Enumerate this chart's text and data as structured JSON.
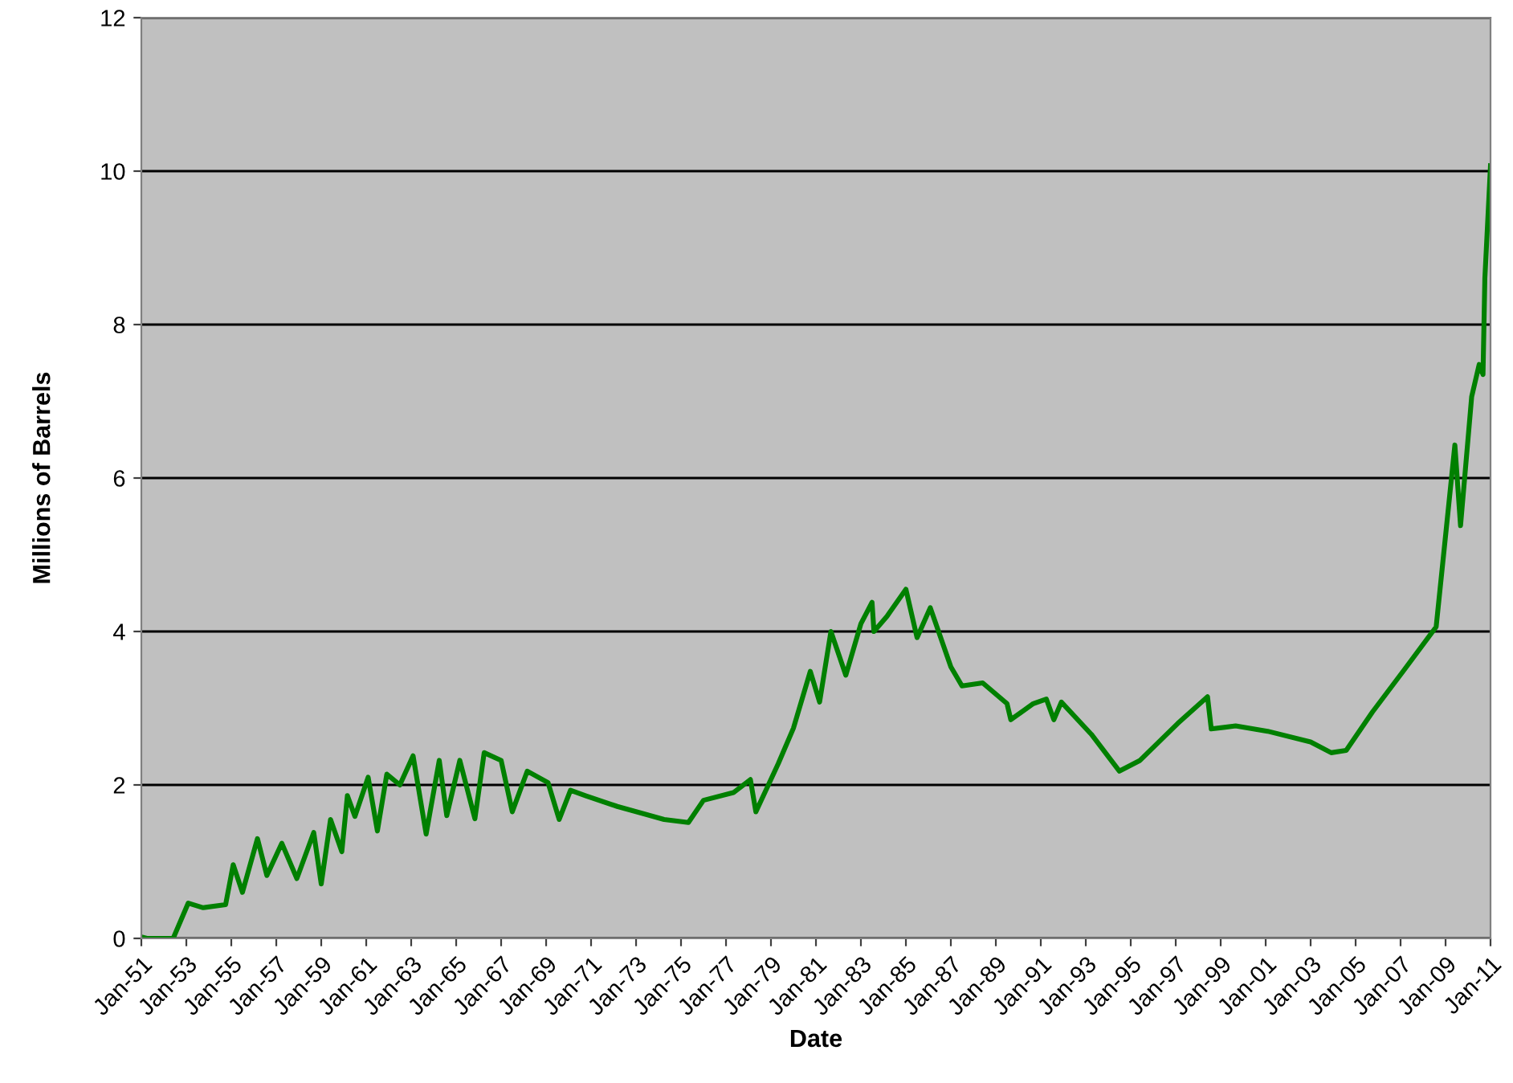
{
  "chart_data": {
    "type": "line",
    "xlabel": "Date",
    "ylabel": "Millions of Barrels",
    "x": [
      "1951-01",
      "1951-04",
      "1952-06",
      "1953-02",
      "1953-10",
      "1954-10",
      "1955-02",
      "1955-07",
      "1956-03",
      "1956-08",
      "1957-04",
      "1957-12",
      "1958-09",
      "1959-01",
      "1959-06",
      "1959-12",
      "1960-03",
      "1960-07",
      "1961-02",
      "1961-07",
      "1961-12",
      "1962-07",
      "1963-02",
      "1963-09",
      "1964-04",
      "1964-08",
      "1965-03",
      "1965-11",
      "1966-04",
      "1967-01",
      "1967-07",
      "1968-03",
      "1969-02",
      "1969-08",
      "1970-02",
      "1970-10",
      "1972-03",
      "1974-04",
      "1975-05",
      "1976-01",
      "1977-05",
      "1978-02",
      "1978-05",
      "1979-05",
      "1980-01",
      "1980-10",
      "1981-03",
      "1981-09",
      "1982-05",
      "1983-01",
      "1983-07",
      "1983-08",
      "1984-03",
      "1985-01",
      "1985-07",
      "1986-02",
      "1987-01",
      "1987-07",
      "1988-06",
      "1989-07",
      "1989-09",
      "1990-09",
      "1991-04",
      "1991-08",
      "1991-12",
      "1993-04",
      "1994-07",
      "1995-06",
      "1997-02",
      "1998-06",
      "1998-08",
      "1999-09",
      "2001-02",
      "2003-01",
      "2003-12",
      "2004-08",
      "2005-10",
      "2007-03",
      "2008-08",
      "2009-01",
      "2009-06",
      "2009-09",
      "2010-03",
      "2010-07",
      "2010-09",
      "2010-10",
      "2011-01"
    ],
    "series": [
      {
        "color": "#008000",
        "values": [
          0.02,
          0.0,
          0.0,
          0.46,
          0.4,
          0.44,
          0.96,
          0.6,
          1.3,
          0.82,
          1.24,
          0.78,
          1.38,
          0.71,
          1.55,
          1.13,
          1.86,
          1.59,
          2.1,
          1.4,
          2.14,
          2.0,
          2.38,
          1.36,
          2.32,
          1.6,
          2.32,
          1.56,
          2.42,
          2.32,
          1.65,
          2.18,
          2.03,
          1.55,
          1.93,
          1.86,
          1.72,
          1.55,
          1.51,
          1.8,
          1.9,
          2.07,
          1.65,
          2.28,
          2.74,
          3.48,
          3.08,
          4.0,
          3.43,
          4.1,
          4.38,
          4.0,
          4.2,
          4.55,
          3.92,
          4.31,
          3.54,
          3.29,
          3.33,
          3.06,
          2.85,
          3.06,
          3.12,
          2.85,
          3.08,
          2.66,
          2.18,
          2.32,
          2.8,
          3.15,
          2.73,
          2.77,
          2.7,
          2.56,
          2.42,
          2.45,
          2.95,
          3.5,
          4.06,
          5.25,
          6.43,
          5.38,
          7.06,
          7.48,
          7.35,
          8.6,
          10.07
        ]
      }
    ],
    "xlim": [
      "1951-01",
      "2011-01"
    ],
    "xticks": [
      {
        "value": "1951-01",
        "label": "Jan-51"
      },
      {
        "value": "1953-01",
        "label": "Jan-53"
      },
      {
        "value": "1955-01",
        "label": "Jan-55"
      },
      {
        "value": "1957-01",
        "label": "Jan-57"
      },
      {
        "value": "1959-01",
        "label": "Jan-59"
      },
      {
        "value": "1961-01",
        "label": "Jan-61"
      },
      {
        "value": "1963-01",
        "label": "Jan-63"
      },
      {
        "value": "1965-01",
        "label": "Jan-65"
      },
      {
        "value": "1967-01",
        "label": "Jan-67"
      },
      {
        "value": "1969-01",
        "label": "Jan-69"
      },
      {
        "value": "1971-01",
        "label": "Jan-71"
      },
      {
        "value": "1973-01",
        "label": "Jan-73"
      },
      {
        "value": "1975-01",
        "label": "Jan-75"
      },
      {
        "value": "1977-01",
        "label": "Jan-77"
      },
      {
        "value": "1979-01",
        "label": "Jan-79"
      },
      {
        "value": "1981-01",
        "label": "Jan-81"
      },
      {
        "value": "1983-01",
        "label": "Jan-83"
      },
      {
        "value": "1985-01",
        "label": "Jan-85"
      },
      {
        "value": "1987-01",
        "label": "Jan-87"
      },
      {
        "value": "1989-01",
        "label": "Jan-89"
      },
      {
        "value": "1991-01",
        "label": "Jan-91"
      },
      {
        "value": "1993-01",
        "label": "Jan-93"
      },
      {
        "value": "1995-01",
        "label": "Jan-95"
      },
      {
        "value": "1997-01",
        "label": "Jan-97"
      },
      {
        "value": "1999-01",
        "label": "Jan-99"
      },
      {
        "value": "2001-01",
        "label": "Jan-01"
      },
      {
        "value": "2003-01",
        "label": "Jan-03"
      },
      {
        "value": "2005-01",
        "label": "Jan-05"
      },
      {
        "value": "2007-01",
        "label": "Jan-07"
      },
      {
        "value": "2009-01",
        "label": "Jan-09"
      },
      {
        "value": "2011-01",
        "label": "Jan-11"
      }
    ],
    "ylim": [
      0,
      12
    ],
    "yticks": [
      0,
      2,
      4,
      6,
      8,
      10,
      12
    ],
    "grid": "y",
    "legend": false,
    "marker": "none",
    "line_style": "solid"
  }
}
